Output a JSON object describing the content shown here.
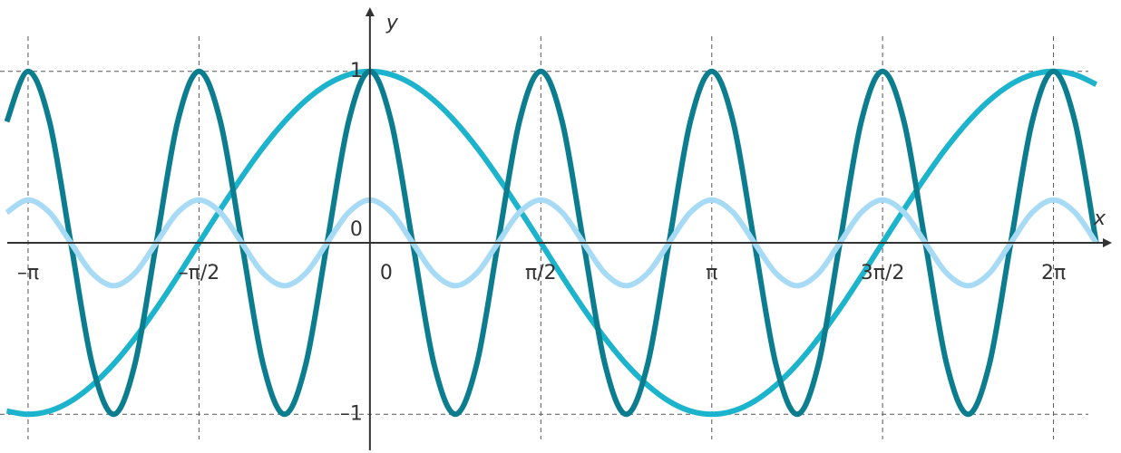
{
  "chart_data": {
    "type": "line",
    "x": [
      -3.338,
      -3.142,
      -2.945,
      -2.749,
      -2.553,
      -2.356,
      -2.16,
      -1.963,
      -1.767,
      -1.571,
      -1.374,
      -1.178,
      -0.982,
      -0.785,
      -0.589,
      -0.393,
      -0.196,
      0,
      0.196,
      0.393,
      0.589,
      0.785,
      0.982,
      1.178,
      1.374,
      1.571,
      1.767,
      1.963,
      2.16,
      2.356,
      2.553,
      2.749,
      2.945,
      3.142,
      3.338,
      3.534,
      3.731,
      3.927,
      4.123,
      4.32,
      4.516,
      4.712,
      4.909,
      5.105,
      5.301,
      5.498,
      5.694,
      5.89,
      6.087,
      6.283,
      6.48,
      6.676
    ],
    "series": [
      {
        "color": "#1cb3cd",
        "values": [
          -0.981,
          -1,
          -0.981,
          -0.924,
          -0.831,
          -0.707,
          -0.556,
          -0.383,
          -0.195,
          0,
          0.195,
          0.383,
          0.556,
          0.707,
          0.831,
          0.924,
          0.981,
          1,
          0.981,
          0.924,
          0.831,
          0.707,
          0.556,
          0.383,
          0.195,
          0,
          -0.195,
          -0.383,
          -0.556,
          -0.707,
          -0.831,
          -0.924,
          -0.981,
          -1,
          -0.981,
          -0.924,
          -0.831,
          -0.707,
          -0.556,
          -0.383,
          -0.195,
          0,
          0.195,
          0.383,
          0.556,
          0.707,
          0.831,
          0.924,
          0.981,
          1,
          0.981,
          0.924
        ]
      },
      {
        "color": "#0b7d8f",
        "values": [
          0.707,
          1,
          0.707,
          0,
          -0.707,
          -1,
          -0.707,
          0,
          0.707,
          1,
          0.707,
          0,
          -0.707,
          -1,
          -0.707,
          0,
          0.707,
          1,
          0.707,
          0,
          -0.707,
          -1,
          -0.707,
          0,
          0.707,
          1,
          0.707,
          0,
          -0.707,
          -1,
          -0.707,
          0,
          0.707,
          1,
          0.707,
          0,
          -0.707,
          -1,
          -0.707,
          0,
          0.707,
          1,
          0.707,
          0,
          -0.707,
          -1,
          -0.707,
          0,
          0.707,
          1,
          0.707,
          0
        ]
      },
      {
        "color": "#a7dbf5",
        "values": [
          0.177,
          0.25,
          0.177,
          0,
          -0.177,
          -0.25,
          -0.177,
          0,
          0.177,
          0.25,
          0.177,
          0,
          -0.177,
          -0.25,
          -0.177,
          0,
          0.177,
          0.25,
          0.177,
          0,
          -0.177,
          -0.25,
          -0.177,
          0,
          0.177,
          0.25,
          0.177,
          0,
          -0.177,
          -0.25,
          -0.177,
          0,
          0.177,
          0.25,
          0.177,
          0,
          -0.177,
          -0.25,
          -0.177,
          0,
          0.177,
          0.25,
          0.177,
          0,
          -0.177,
          -0.25,
          -0.177,
          0,
          0.177,
          0.25,
          0.177,
          0
        ]
      }
    ],
    "xlabel": "x",
    "ylabel": "y",
    "xlim": [
      -3.4,
      6.87
    ],
    "ylim": [
      -1.21,
      1.39
    ],
    "xticks": [
      {
        "value": -3.142,
        "label": "–π"
      },
      {
        "value": -1.571,
        "label": "–π/2"
      },
      0,
      {
        "value": 1.571,
        "label": "π/2"
      },
      {
        "value": 3.142,
        "label": "π"
      },
      {
        "value": 4.712,
        "label": "3π/2"
      },
      {
        "value": 6.283,
        "label": "2π"
      }
    ],
    "yticks": [
      {
        "value": -1,
        "label": "–1"
      },
      0,
      1
    ],
    "grid": true
  }
}
